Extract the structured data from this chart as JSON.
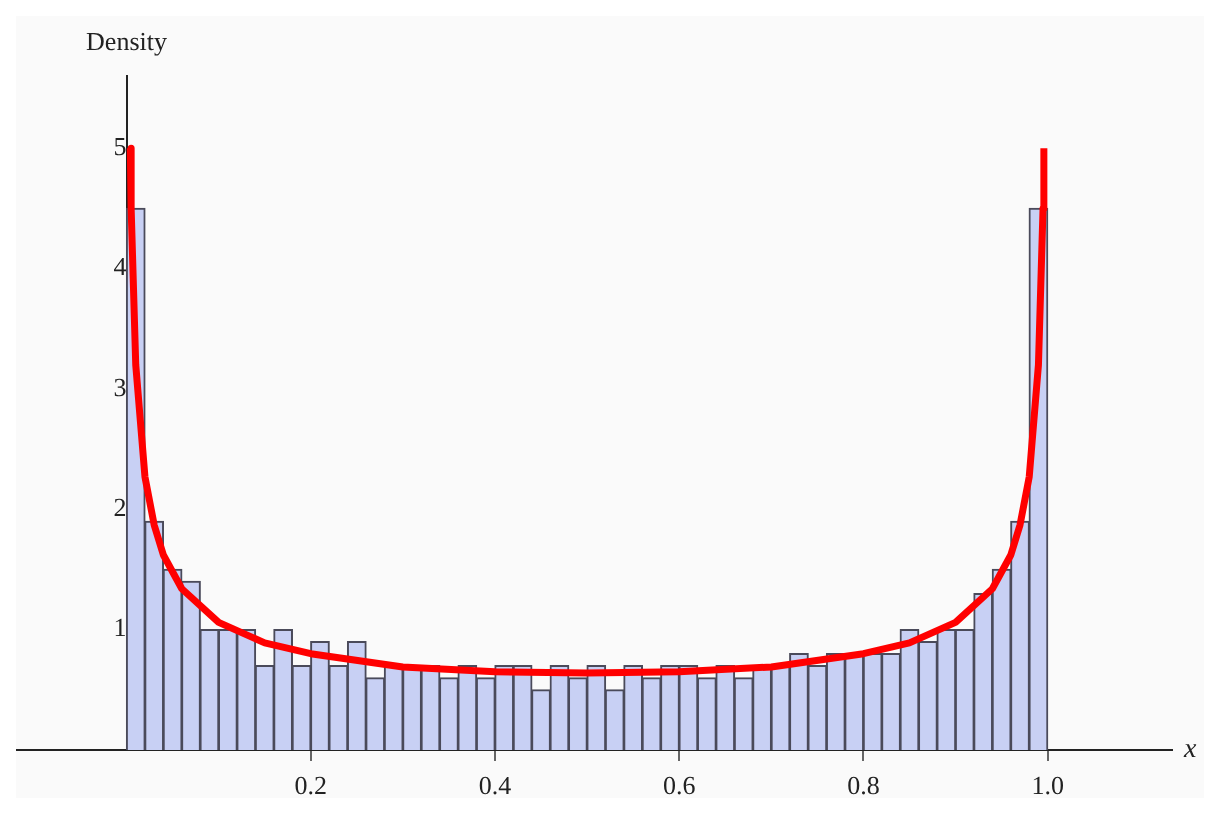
{
  "chart_data": {
    "type": "histogram",
    "xlabel": "x",
    "ylabel": "Density",
    "xlim": [
      -0.12,
      1.135
    ],
    "ylim": [
      0,
      5.6
    ],
    "xticks": [
      0.2,
      0.4,
      0.6,
      0.8,
      {
        "value": 1,
        "label": "1.0"
      }
    ],
    "yticks": [
      1,
      2,
      3,
      4,
      5
    ],
    "grid": false,
    "legend": false,
    "series": [
      {
        "color": "#c8d0f4",
        "bins": [
          0,
          0.02,
          0.04,
          0.06,
          0.08,
          0.1,
          0.12,
          0.14,
          0.16,
          0.18,
          0.2,
          0.22,
          0.24,
          0.26,
          0.28,
          0.3,
          0.32,
          0.34,
          0.36,
          0.38,
          0.4,
          0.42,
          0.44,
          0.46,
          0.48,
          0.5,
          0.52,
          0.54,
          0.56,
          0.58,
          0.6,
          0.62,
          0.64,
          0.66,
          0.68,
          0.7,
          0.72,
          0.74,
          0.76,
          0.78,
          0.8,
          0.82,
          0.84,
          0.86,
          0.88,
          0.9,
          0.92,
          0.94,
          0.96,
          0.98,
          1
        ],
        "values": [
          4.5,
          1.9,
          1.5,
          1.4,
          1.0,
          1.0,
          1.0,
          0.7,
          1.0,
          0.7,
          0.9,
          0.7,
          0.9,
          0.6,
          0.7,
          0.7,
          0.7,
          0.6,
          0.7,
          0.6,
          0.7,
          0.7,
          0.5,
          0.7,
          0.6,
          0.7,
          0.5,
          0.7,
          0.6,
          0.7,
          0.7,
          0.6,
          0.7,
          0.6,
          0.7,
          0.7,
          0.8,
          0.7,
          0.8,
          0.8,
          0.8,
          0.8,
          1.0,
          0.9,
          1.0,
          1.0,
          1.3,
          1.5,
          1.9,
          4.5
        ]
      },
      {
        "type": "line",
        "color": "#ff0000",
        "x": [
          0.0041,
          0.005,
          0.01,
          0.02,
          0.03,
          0.04,
          0.06,
          0.1,
          0.15,
          0.2,
          0.3,
          0.4,
          0.5,
          0.6,
          0.7,
          0.8,
          0.85,
          0.9,
          0.94,
          0.96,
          0.97,
          0.98,
          0.99,
          0.995,
          0.9959
        ],
        "values": [
          5.0,
          4.5,
          3.2,
          2.27,
          1.87,
          1.62,
          1.34,
          1.06,
          0.89,
          0.8,
          0.69,
          0.65,
          0.64,
          0.65,
          0.69,
          0.8,
          0.89,
          1.06,
          1.34,
          1.62,
          1.87,
          2.27,
          3.2,
          4.5,
          5.0
        ]
      }
    ]
  }
}
